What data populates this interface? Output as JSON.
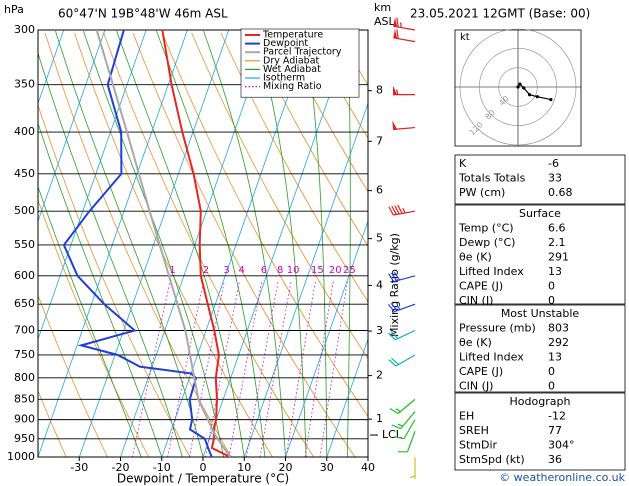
{
  "header": {
    "hpa": "hPa",
    "location": "60°47'N 19B°48'W 46m ASL",
    "km": "km",
    "asl": "ASL",
    "date": "23.05.2021 12GMT (Base: 00)"
  },
  "chart_data": {
    "type": "skew-t",
    "x_label": "Dewpoint / Temperature (°C)",
    "y2_label": "Mixing Ratio (g/kg)",
    "ylim": [
      1000,
      300
    ],
    "log_y": true,
    "yticks": [
      300,
      350,
      400,
      450,
      500,
      550,
      600,
      650,
      700,
      750,
      800,
      850,
      900,
      950,
      1000
    ],
    "xlim": [
      -40,
      40
    ],
    "xticks": [
      -30,
      -20,
      -10,
      0,
      10,
      20,
      30,
      40
    ],
    "series": [
      {
        "name": "Temperature",
        "color": "#e8251f",
        "pressure": [
          1000,
          975,
          950,
          925,
          900,
          850,
          800,
          750,
          700,
          650,
          600,
          550,
          500,
          450,
          400,
          350,
          300
        ],
        "values": [
          6.6,
          1.4,
          1.1,
          0.3,
          0,
          -1.5,
          -3.6,
          -4.8,
          -8,
          -11.8,
          -15.9,
          -18.8,
          -21.4,
          -26.3,
          -32.6,
          -39.2,
          -46.1
        ]
      },
      {
        "name": "Dewpoint",
        "color": "#1f3fd8",
        "pressure": [
          1000,
          975,
          950,
          925,
          900,
          850,
          800,
          790,
          775,
          750,
          730,
          700,
          650,
          600,
          550,
          500,
          450,
          400,
          350,
          300
        ],
        "values": [
          2.1,
          0.5,
          -1.1,
          -5.5,
          -5.8,
          -8.1,
          -8.4,
          -10,
          -23,
          -29.3,
          -39,
          -27.3,
          -36.9,
          -45.8,
          -51.7,
          -48.4,
          -43.8,
          -47.4,
          -54.7,
          -55.4
        ]
      },
      {
        "name": "Parcel Trajectory",
        "color": "#a8a8a8",
        "pressure": [
          1000,
          940,
          850,
          700,
          500,
          400,
          300
        ],
        "values": [
          6.6,
          1.1,
          -6,
          -15,
          -33.8,
          -46,
          -62
        ]
      }
    ],
    "reference_lines": [
      {
        "name": "Dry Adiabat",
        "kind": "dry",
        "color": "#e8902a",
        "values": [
          240,
          250,
          260,
          270,
          280,
          290,
          300,
          310,
          320,
          330,
          340,
          350,
          360,
          370,
          380,
          390,
          400,
          410,
          420
        ]
      },
      {
        "name": "Wet Adiabat",
        "kind": "wet",
        "color": "#2a9d2a",
        "values": [
          -15,
          -10,
          -5,
          0,
          5,
          10,
          15,
          20,
          25,
          30,
          35
        ]
      },
      {
        "name": "Isotherm",
        "kind": "isotherm",
        "color": "#20a8e0",
        "values": [
          -80,
          -70,
          -60,
          -50,
          -40,
          -30,
          -20,
          -10,
          0,
          10,
          20,
          30,
          40
        ]
      },
      {
        "name": "Mixing Ratio",
        "kind": "mixing",
        "color": "#c800c8",
        "values": [
          1,
          2,
          3,
          4,
          6,
          8,
          10,
          15,
          20,
          25
        ]
      }
    ],
    "km_ticks": [
      1,
      2,
      3,
      4,
      5,
      6,
      7,
      8
    ],
    "lcl": {
      "label": "LCL",
      "pressure": 940
    },
    "winds": {
      "pressure": [
        300,
        310,
        360,
        395,
        500,
        600,
        650,
        700,
        750,
        850,
        880,
        900,
        930,
        1000
      ],
      "direction": [
        280,
        280,
        270,
        265,
        260,
        255,
        250,
        245,
        240,
        230,
        220,
        210,
        200,
        180
      ],
      "speed": [
        65,
        60,
        55,
        50,
        45,
        30,
        25,
        20,
        20,
        15,
        15,
        10,
        10,
        5
      ],
      "color": [
        "#e02020",
        "#e02020",
        "#e02020",
        "#e02020",
        "#e02020",
        "#2040e0",
        "#2040e0",
        "#10b0c0",
        "#10b0c0",
        "#20c020",
        "#20c020",
        "#20c020",
        "#20c020",
        "#c8c820"
      ]
    },
    "hodograph": {
      "unit": "kt",
      "rings": [
        40,
        80,
        120
      ],
      "u": [
        0,
        4,
        12,
        24,
        40,
        68
      ],
      "v": [
        0,
        6,
        -2,
        -16,
        -20,
        -26
      ]
    }
  },
  "panel": {
    "indices": {
      "rows": [
        [
          "K",
          -6
        ],
        [
          "Totals Totals",
          33
        ],
        [
          "PW (cm)",
          0.68
        ]
      ]
    },
    "surface": {
      "title": "Surface",
      "rows": [
        [
          "Temp (°C)",
          6.6
        ],
        [
          "Dewp (°C)",
          2.1
        ],
        [
          "θe (K)",
          291
        ],
        [
          "Lifted Index",
          13
        ],
        [
          "CAPE (J)",
          0
        ],
        [
          "CIN (J)",
          0
        ]
      ]
    },
    "most_unstable": {
      "title": "Most Unstable",
      "rows": [
        [
          "Pressure (mb)",
          803
        ],
        [
          "θe (K)",
          292
        ],
        [
          "Lifted Index",
          13
        ],
        [
          "CAPE (J)",
          0
        ],
        [
          "CIN (J)",
          0
        ]
      ]
    },
    "hodograph_table": {
      "title": "Hodograph",
      "rows": [
        [
          "EH",
          -12
        ],
        [
          "SREH",
          77
        ],
        [
          "StmDir",
          "304°"
        ],
        [
          "StmSpd (kt)",
          36
        ]
      ]
    }
  },
  "footer": "© weatheronline.co.uk"
}
